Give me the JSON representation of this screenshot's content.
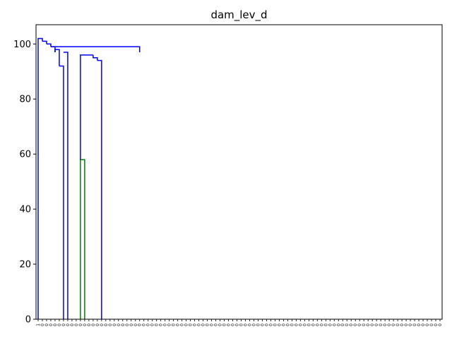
{
  "chart_data": {
    "type": "dendrogram",
    "title": "dam_lev_d",
    "xlabel": "",
    "ylabel": "",
    "ylim": [
      0,
      107
    ],
    "yticks": [
      0,
      20,
      40,
      60,
      80,
      100
    ],
    "leaf_labels": [
      "1",
      "0",
      "0",
      "0",
      "0",
      "0",
      "0",
      "0",
      "0",
      "0",
      "0",
      "0",
      "0",
      "0",
      "0",
      "0",
      "0",
      "0",
      "0",
      "0",
      "0",
      "0",
      "0",
      "0",
      "0",
      "0",
      "0",
      "0",
      "0",
      "0",
      "0",
      "0",
      "0",
      "0",
      "0",
      "0",
      "0",
      "0",
      "0",
      "0",
      "0",
      "0",
      "0",
      "0",
      "0",
      "0",
      "0",
      "0",
      "0",
      "0",
      "0",
      "0",
      "0",
      "0",
      "0",
      "0",
      "0",
      "0",
      "0",
      "0",
      "0",
      "0",
      "0",
      "0",
      "0",
      "0",
      "0",
      "0",
      "0",
      "0",
      "0",
      "0",
      "0",
      "0",
      "0",
      "0",
      "0",
      "0",
      "0",
      "0",
      "0",
      "0",
      "0",
      "0",
      "0",
      "0",
      "0",
      "0",
      "0",
      "0",
      "0",
      "0",
      "0",
      "0",
      "0",
      "0"
    ],
    "colors": {
      "above_threshold": "#0000ff",
      "green": "#008000",
      "red": "#ff0000",
      "cyan": "#00bfbf",
      "magenta": "#bf00bf",
      "olive": "#bfbf00",
      "black": "#000000"
    },
    "links": [
      {
        "color": "blue",
        "xs": [
          0,
          0,
          1,
          1
        ],
        "ys": [
          0,
          102,
          102,
          101
        ]
      },
      {
        "color": "blue",
        "xs": [
          1,
          1,
          2,
          2
        ],
        "ys": [
          101,
          101,
          101,
          100
        ]
      },
      {
        "color": "blue",
        "xs": [
          2,
          2,
          3,
          3
        ],
        "ys": [
          100,
          100,
          100,
          99
        ]
      },
      {
        "color": "blue",
        "xs": [
          3,
          3,
          4,
          4
        ],
        "ys": [
          99,
          99,
          99,
          97
        ]
      },
      {
        "color": "blue",
        "xs": [
          4,
          4,
          5,
          5
        ],
        "ys": [
          97,
          98,
          98,
          92
        ]
      },
      {
        "color": "blue",
        "xs": [
          5,
          5,
          6,
          6
        ],
        "ys": [
          92,
          92,
          92,
          0
        ]
      },
      {
        "color": "blue",
        "xs": [
          6,
          6,
          7,
          7
        ],
        "ys": [
          97,
          97,
          97,
          0
        ]
      },
      {
        "color": "blue",
        "xs": [
          3,
          3,
          24,
          24
        ],
        "ys": [
          99,
          99,
          99,
          97
        ]
      },
      {
        "color": "green",
        "xs": [
          10,
          10,
          11,
          11
        ],
        "ys": [
          0,
          58,
          58,
          0
        ]
      },
      {
        "color": "blue",
        "xs": [
          10,
          10,
          13,
          13
        ],
        "ys": [
          58,
          96,
          96,
          96
        ]
      },
      {
        "color": "blue",
        "xs": [
          13,
          13,
          14,
          14
        ],
        "ys": [
          96,
          95,
          95,
          94
        ]
      },
      {
        "color": "blue",
        "xs": [
          14,
          14,
          15,
          15
        ],
        "ys": [
          94,
          94,
          94,
          0
        ]
      }
    ]
  }
}
